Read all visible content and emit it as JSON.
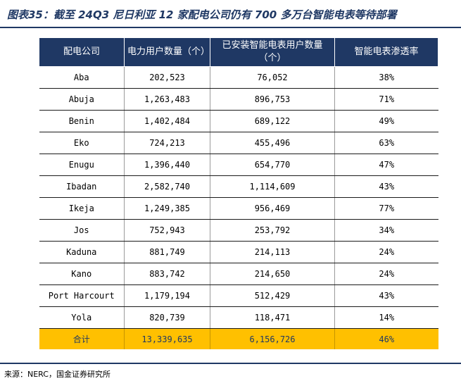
{
  "title": "图表35：截至 24Q3 尼日利亚 12 家配电公司仍有 700 多万台智能电表等待部署",
  "table": {
    "headers": [
      "配电公司",
      "电力用户数量（个）",
      "已安装智能电表用户数量（个）",
      "智能电表渗透率"
    ],
    "rows": [
      [
        "Aba",
        "202,523",
        "76,052",
        "38%"
      ],
      [
        "Abuja",
        "1,263,483",
        "896,753",
        "71%"
      ],
      [
        "Benin",
        "1,402,484",
        "689,122",
        "49%"
      ],
      [
        "Eko",
        "724,213",
        "455,496",
        "63%"
      ],
      [
        "Enugu",
        "1,396,440",
        "654,770",
        "47%"
      ],
      [
        "Ibadan",
        "2,582,740",
        "1,114,609",
        "43%"
      ],
      [
        "Ikeja",
        "1,249,385",
        "956,469",
        "77%"
      ],
      [
        "Jos",
        "752,943",
        "253,792",
        "34%"
      ],
      [
        "Kaduna",
        "881,749",
        "214,113",
        "24%"
      ],
      [
        "Kano",
        "883,742",
        "214,650",
        "24%"
      ],
      [
        "Port Harcourt",
        "1,179,194",
        "512,429",
        "43%"
      ],
      [
        "Yola",
        "820,739",
        "118,471",
        "14%"
      ]
    ],
    "total": [
      "合计",
      "13,339,635",
      "6,156,726",
      "46%"
    ]
  },
  "source": "来源：NERC，国金证券研究所",
  "colors": {
    "header_bg": "#1f3864",
    "total_bg": "#ffc000",
    "title_color": "#1f3864"
  }
}
